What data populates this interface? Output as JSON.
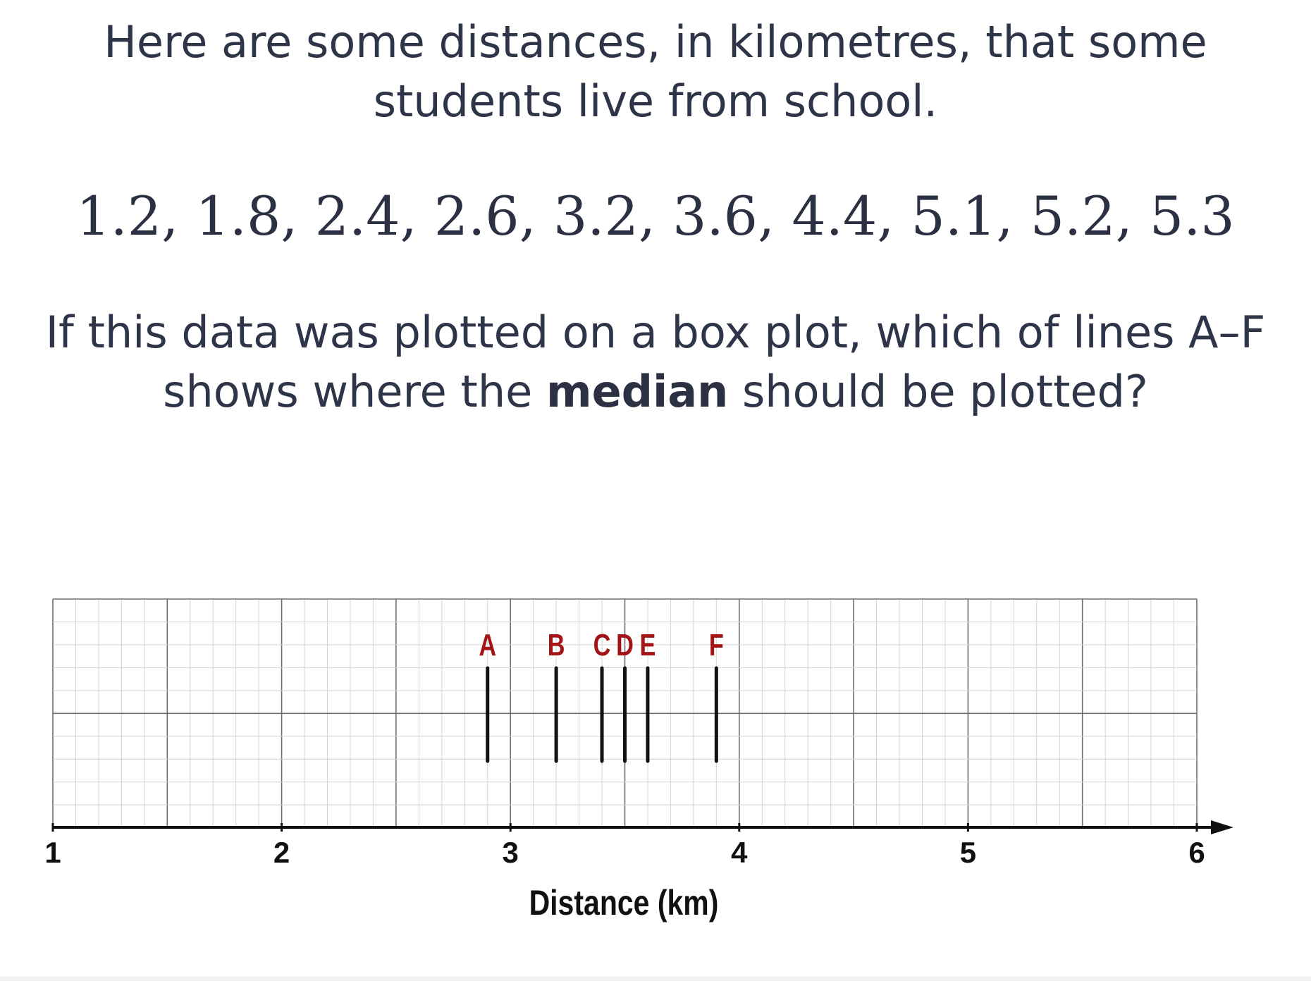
{
  "question": {
    "intro": "Here are some distances, in kilometres, that some students live from school.",
    "dataset": "1.2, 1.8, 2.4, 2.6, 3.2, 3.6, 4.4, 5.1, 5.2, 5.3",
    "prompt_before": "If this data was plotted on a box plot, which of lines A–F shows where the ",
    "prompt_bold": "median",
    "prompt_after": " should be plotted?"
  },
  "diagram": {
    "axis_label": "Distance (km)",
    "x_min": 1,
    "x_max": 6,
    "tick_labels": [
      "1",
      "2",
      "3",
      "4",
      "5",
      "6"
    ],
    "candidate_lines": [
      {
        "label": "A",
        "value": 2.9
      },
      {
        "label": "B",
        "value": 3.2
      },
      {
        "label": "C",
        "value": 3.4
      },
      {
        "label": "D",
        "value": 3.5
      },
      {
        "label": "E",
        "value": 3.6
      },
      {
        "label": "F",
        "value": 3.9
      }
    ],
    "colors": {
      "label": "#a31416",
      "line": "#111111",
      "grid_minor": "#d4d4d4",
      "grid_major": "#6e6e6e",
      "axis": "#111111"
    }
  }
}
